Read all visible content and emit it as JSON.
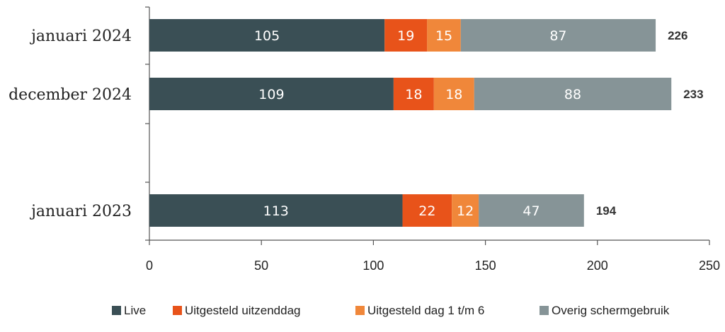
{
  "chart_data": {
    "type": "bar",
    "orientation": "horizontal",
    "stacked": true,
    "categories": [
      "januari 2024",
      "december 2024",
      "",
      "januari 2023"
    ],
    "series": [
      {
        "name": "Live",
        "color": "#3a4f55",
        "values": [
          105,
          109,
          null,
          113
        ]
      },
      {
        "name": "Uitgesteld uitzenddag",
        "color": "#e8531a",
        "values": [
          19,
          18,
          null,
          22
        ]
      },
      {
        "name": "Uitgesteld dag 1 t/m 6",
        "color": "#f0873a",
        "values": [
          15,
          18,
          null,
          12
        ]
      },
      {
        "name": "Overig schermgebruik",
        "color": "#869497",
        "values": [
          87,
          88,
          null,
          47
        ]
      }
    ],
    "totals": [
      226,
      233,
      null,
      194
    ],
    "xlim": [
      0,
      250
    ],
    "xticks": [
      0,
      50,
      100,
      150,
      200,
      250
    ],
    "grid": false,
    "legend_position": "bottom"
  }
}
